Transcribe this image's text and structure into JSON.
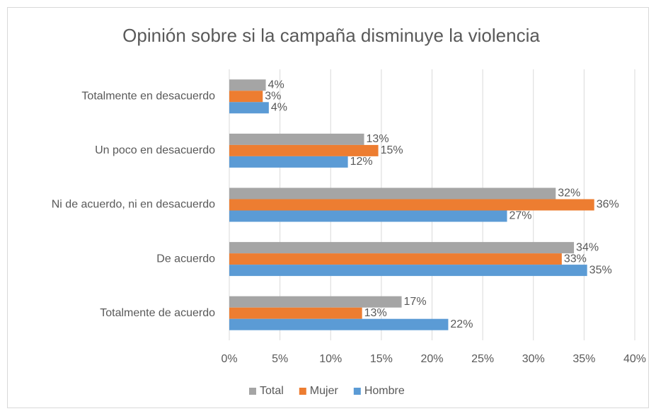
{
  "chart_data": {
    "type": "barh",
    "title": "Opinión sobre si la campaña disminuye la violencia",
    "categories": [
      "Totalmente en desacuerdo",
      "Un poco en desacuerdo",
      "Ni de acuerdo, ni en desacuerdo",
      "De acuerdo",
      "Totalmente de acuerdo"
    ],
    "series": [
      {
        "name": "Total",
        "color": "#a5a5a5",
        "values": [
          3.6,
          13.3,
          32.2,
          34.0,
          17.0
        ],
        "value_labels": [
          "4%",
          "13%",
          "32%",
          "34%",
          "17%"
        ]
      },
      {
        "name": "Mujer",
        "color": "#ed7d31",
        "values": [
          3.3,
          14.7,
          36.0,
          32.8,
          13.1
        ],
        "value_labels": [
          "3%",
          "15%",
          "36%",
          "33%",
          "13%"
        ]
      },
      {
        "name": "Hombre",
        "color": "#5b9bd5",
        "values": [
          3.9,
          11.7,
          27.4,
          35.3,
          21.6
        ],
        "value_labels": [
          "4%",
          "12%",
          "27%",
          "35%",
          "22%"
        ]
      }
    ],
    "xlim": [
      0,
      40
    ],
    "xticks": [
      {
        "value": 0,
        "label": "0%"
      },
      {
        "value": 5,
        "label": "5%"
      },
      {
        "value": 10,
        "label": "10%"
      },
      {
        "value": 15,
        "label": "15%"
      },
      {
        "value": 20,
        "label": "20%"
      },
      {
        "value": 25,
        "label": "25%"
      },
      {
        "value": 30,
        "label": "30%"
      },
      {
        "value": 35,
        "label": "35%"
      },
      {
        "value": 40,
        "label": "40%"
      }
    ],
    "grid": true,
    "legend": "bottom"
  }
}
